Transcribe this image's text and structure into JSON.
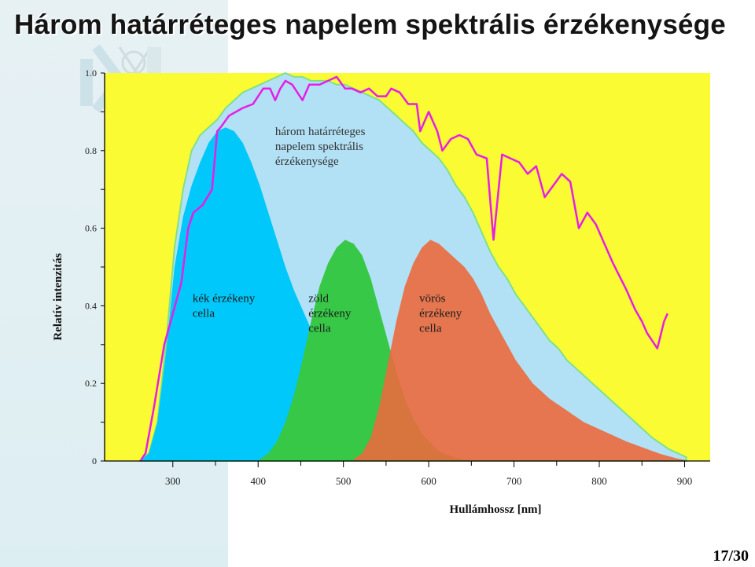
{
  "slide": {
    "title": "Három határréteges napelem spektrális érzékenysége",
    "page_current": "17",
    "page_total": "30"
  },
  "colors": {
    "plot_background": "#fbfb33",
    "spectrum_fill": "#b2e1f5",
    "spectrum_edge": "#7fe08a",
    "solar_line": "#e61ee6",
    "blue_cell": "#00c8fa",
    "green_cell": "#37c848",
    "red_cell": "#ea6a3d"
  },
  "chart_data": {
    "type": "area",
    "title": "",
    "xlabel": "Hullámhossz [nm]",
    "ylabel": "Relatív intenzitás",
    "xlim": [
      220,
      930
    ],
    "ylim": [
      0,
      1.0
    ],
    "x_ticks": [
      300,
      400,
      500,
      600,
      700,
      800,
      900
    ],
    "y_ticks": [
      0,
      0.2,
      0.4,
      0.6,
      0.8,
      1.0
    ],
    "y_tick_labels": [
      "0",
      "0.2",
      "0.4",
      "0.6",
      "0.8",
      "1.0"
    ],
    "grid": false,
    "series": [
      {
        "name": "három határréteges napelem spektrális érzékenysége",
        "kind": "area",
        "x": [
          262,
          272,
          282,
          292,
          302,
          312,
          322,
          332,
          342,
          352,
          362,
          372,
          382,
          392,
          402,
          412,
          422,
          432,
          442,
          452,
          462,
          472,
          482,
          492,
          502,
          512,
          522,
          532,
          542,
          552,
          562,
          572,
          582,
          592,
          602,
          612,
          622,
          632,
          642,
          652,
          662,
          672,
          682,
          692,
          702,
          712,
          722,
          732,
          742,
          752,
          762,
          772,
          782,
          792,
          802,
          812,
          822,
          832,
          842,
          852,
          862,
          872,
          882,
          892,
          902
        ],
        "y": [
          0.0,
          0.02,
          0.1,
          0.3,
          0.55,
          0.7,
          0.8,
          0.84,
          0.86,
          0.88,
          0.91,
          0.93,
          0.95,
          0.96,
          0.97,
          0.98,
          0.99,
          1.0,
          0.99,
          0.99,
          0.98,
          0.98,
          0.98,
          0.97,
          0.97,
          0.96,
          0.95,
          0.94,
          0.93,
          0.91,
          0.89,
          0.87,
          0.85,
          0.82,
          0.8,
          0.78,
          0.75,
          0.71,
          0.68,
          0.64,
          0.59,
          0.54,
          0.5,
          0.47,
          0.43,
          0.4,
          0.37,
          0.34,
          0.31,
          0.29,
          0.26,
          0.24,
          0.22,
          0.2,
          0.18,
          0.16,
          0.14,
          0.12,
          0.1,
          0.08,
          0.06,
          0.045,
          0.03,
          0.02,
          0.01
        ]
      },
      {
        "name": "kék érzékeny cella",
        "kind": "area",
        "x": [
          262,
          272,
          282,
          292,
          302,
          312,
          322,
          332,
          342,
          352,
          362,
          372,
          382,
          392,
          402,
          412,
          422,
          432,
          442,
          452,
          462,
          472,
          482,
          492,
          502,
          512,
          522,
          532,
          542,
          552,
          562,
          572,
          582,
          592,
          602
        ],
        "y": [
          0.0,
          0.02,
          0.1,
          0.28,
          0.5,
          0.63,
          0.71,
          0.77,
          0.82,
          0.85,
          0.86,
          0.85,
          0.82,
          0.77,
          0.71,
          0.64,
          0.57,
          0.5,
          0.44,
          0.39,
          0.34,
          0.3,
          0.26,
          0.22,
          0.18,
          0.14,
          0.11,
          0.08,
          0.06,
          0.04,
          0.025,
          0.015,
          0.008,
          0.003,
          0.0
        ]
      },
      {
        "name": "zöld érzékeny cella",
        "kind": "area",
        "x": [
          400,
          412,
          422,
          432,
          442,
          452,
          462,
          472,
          482,
          492,
          502,
          512,
          522,
          532,
          542,
          552,
          562,
          572,
          582,
          592,
          602,
          612,
          622,
          632,
          642,
          652,
          662
        ],
        "y": [
          0.0,
          0.02,
          0.05,
          0.1,
          0.17,
          0.26,
          0.36,
          0.45,
          0.51,
          0.55,
          0.57,
          0.56,
          0.53,
          0.47,
          0.39,
          0.31,
          0.23,
          0.16,
          0.11,
          0.07,
          0.045,
          0.025,
          0.015,
          0.008,
          0.004,
          0.001,
          0.0
        ]
      },
      {
        "name": "vörös érzékeny cella",
        "kind": "area",
        "x": [
          510,
          522,
          532,
          542,
          552,
          562,
          572,
          582,
          592,
          602,
          612,
          622,
          632,
          642,
          652,
          662,
          672,
          682,
          692,
          702,
          712,
          722,
          732,
          742,
          752,
          762,
          772,
          782,
          792,
          802,
          812,
          822,
          832,
          842,
          852,
          862,
          872,
          882,
          892,
          902
        ],
        "y": [
          0.0,
          0.02,
          0.06,
          0.14,
          0.25,
          0.36,
          0.45,
          0.51,
          0.55,
          0.57,
          0.56,
          0.54,
          0.52,
          0.5,
          0.47,
          0.43,
          0.38,
          0.34,
          0.3,
          0.26,
          0.23,
          0.2,
          0.18,
          0.16,
          0.145,
          0.13,
          0.115,
          0.1,
          0.09,
          0.08,
          0.07,
          0.06,
          0.05,
          0.042,
          0.034,
          0.026,
          0.018,
          0.012,
          0.006,
          0.002
        ]
      },
      {
        "name": "",
        "kind": "line",
        "x": [
          262,
          268,
          278,
          290,
          300,
          310,
          318,
          324,
          335,
          346,
          352,
          356,
          366,
          382,
          394,
          406,
          414,
          420,
          426,
          432,
          440,
          452,
          460,
          472,
          482,
          492,
          502,
          510,
          520,
          530,
          540,
          550,
          556,
          566,
          576,
          586,
          590,
          600,
          610,
          616,
          626,
          636,
          646,
          656,
          668,
          676,
          686,
          696,
          706,
          716,
          726,
          736,
          746,
          756,
          766,
          776,
          786,
          796,
          806,
          816,
          832,
          842,
          850,
          856,
          862,
          868,
          876,
          880
        ],
        "y": [
          0.0,
          0.02,
          0.14,
          0.3,
          0.38,
          0.46,
          0.6,
          0.64,
          0.66,
          0.7,
          0.85,
          0.86,
          0.89,
          0.91,
          0.92,
          0.96,
          0.96,
          0.93,
          0.96,
          0.98,
          0.97,
          0.93,
          0.97,
          0.97,
          0.98,
          0.99,
          0.96,
          0.96,
          0.95,
          0.96,
          0.94,
          0.94,
          0.96,
          0.95,
          0.92,
          0.92,
          0.85,
          0.9,
          0.85,
          0.8,
          0.83,
          0.84,
          0.83,
          0.79,
          0.78,
          0.57,
          0.79,
          0.78,
          0.77,
          0.74,
          0.76,
          0.68,
          0.71,
          0.74,
          0.72,
          0.6,
          0.64,
          0.61,
          0.56,
          0.51,
          0.44,
          0.39,
          0.36,
          0.33,
          0.31,
          0.29,
          0.36,
          0.38
        ]
      }
    ],
    "annotations": [
      {
        "text": "három határréteges napelem spektrális érzékenysége",
        "lines": [
          "három határréteges",
          "napelem spektrális",
          "érzékenysége"
        ],
        "x": 420,
        "y": 0.84
      },
      {
        "text": "kék érzékeny cella",
        "lines": [
          "kék érzékeny",
          "cella"
        ],
        "x": 323,
        "y": 0.41
      },
      {
        "text": "zöld érzékeny cella",
        "lines": [
          "zöld",
          "érzékeny",
          "cella"
        ],
        "x": 459,
        "y": 0.41
      },
      {
        "text": "vörös érzékeny cella",
        "lines": [
          "vörös",
          "érzékeny",
          "cella"
        ],
        "x": 589,
        "y": 0.41
      }
    ]
  }
}
